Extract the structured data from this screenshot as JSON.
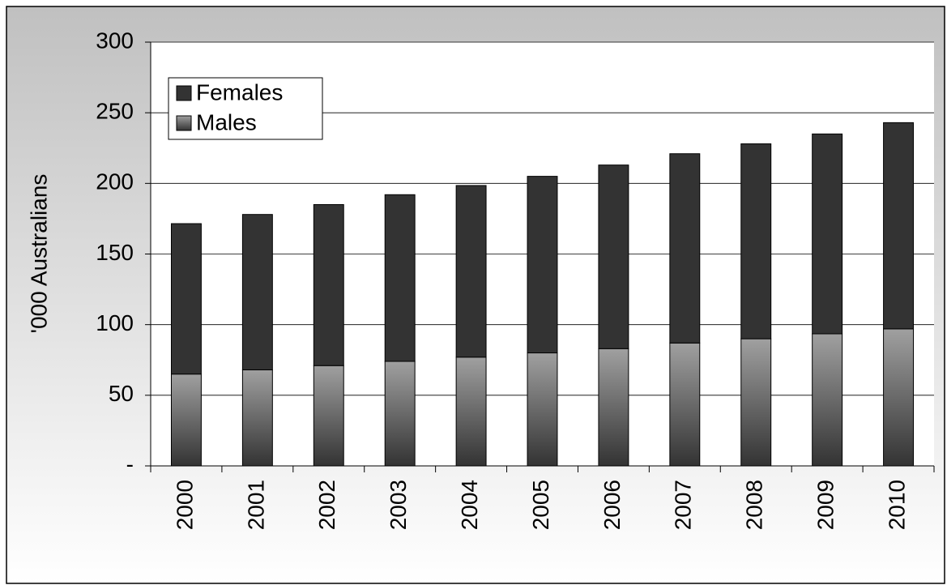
{
  "chart_data": {
    "type": "stacked_bar",
    "y_label": "'000 Australians",
    "categories": [
      "2000",
      "2001",
      "2002",
      "2003",
      "2004",
      "2005",
      "2006",
      "2007",
      "2008",
      "2009",
      "2010"
    ],
    "series": [
      {
        "name": "Males",
        "color": "#a0a0a0",
        "values": [
          65,
          68,
          71,
          74,
          77,
          80,
          83,
          87,
          90,
          93.5,
          97
        ]
      },
      {
        "name": "Females",
        "color": "#333333",
        "values": [
          106.5,
          110,
          114,
          118,
          121.5,
          125,
          130,
          134,
          138,
          141.5,
          146
        ]
      }
    ],
    "ylim": [
      0,
      300
    ],
    "yticks": [
      {
        "value": 0,
        "label": "-"
      },
      50,
      100,
      150,
      200,
      250,
      300
    ],
    "grid": true,
    "legend": "upper left"
  }
}
